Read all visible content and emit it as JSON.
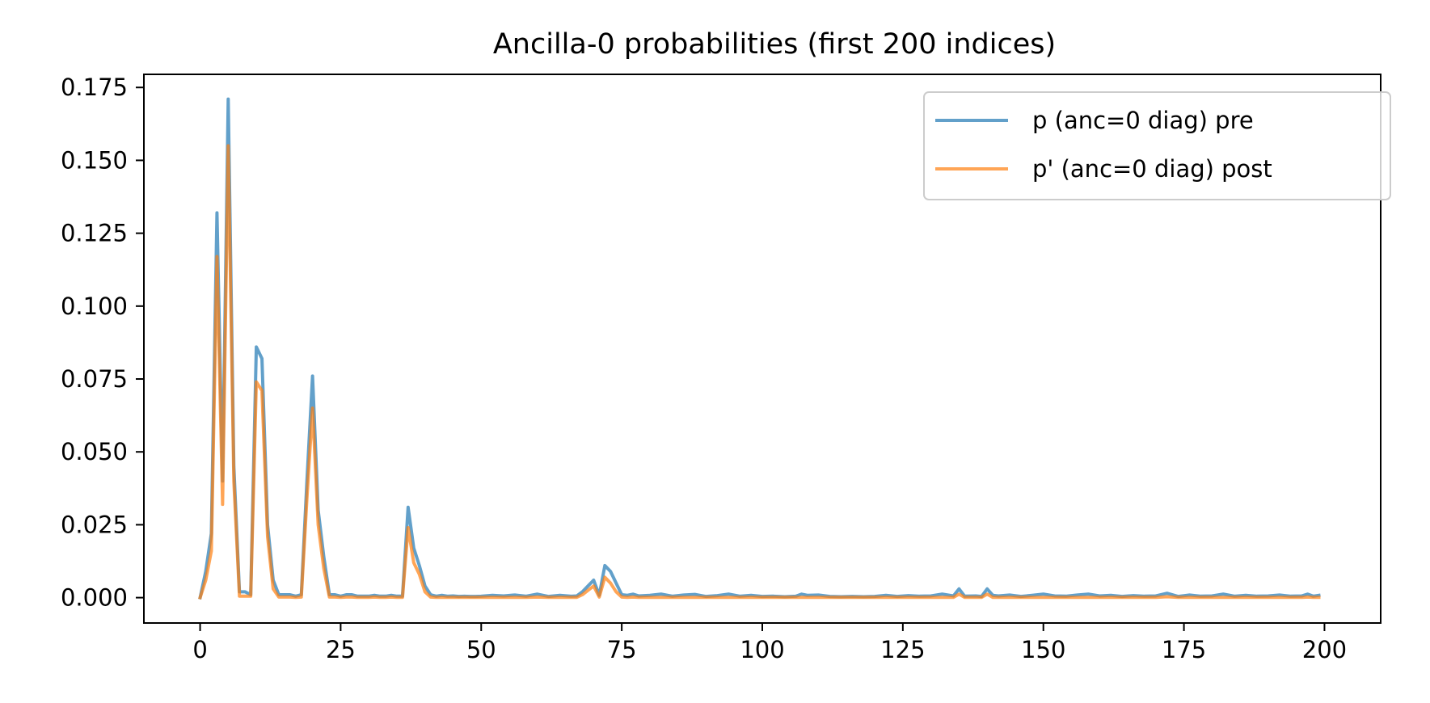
{
  "chart_data": {
    "type": "line",
    "title": "Ancilla-0 probabilities (first 200 indices)",
    "xlabel": "",
    "ylabel": "",
    "xlim": [
      -10,
      210
    ],
    "ylim": [
      -0.0087,
      0.1795
    ],
    "xticks": [
      0,
      25,
      50,
      75,
      100,
      125,
      150,
      175,
      200
    ],
    "yticks": [
      0.0,
      0.025,
      0.05,
      0.075,
      0.1,
      0.125,
      0.15,
      0.175
    ],
    "xtick_labels": [
      "0",
      "25",
      "50",
      "75",
      "100",
      "125",
      "150",
      "175",
      "200"
    ],
    "ytick_labels": [
      "0.000",
      "0.025",
      "0.050",
      "0.075",
      "0.100",
      "0.125",
      "0.150",
      "0.175"
    ],
    "grid": false,
    "legend_position": "upper right",
    "series": [
      {
        "name": "p (anc=0 diag) pre",
        "color": "#1f77b4",
        "opacity": 0.7,
        "points": [
          [
            0,
            0
          ],
          [
            1,
            0.009
          ],
          [
            2,
            0.022
          ],
          [
            3,
            0.132
          ],
          [
            4,
            0.04
          ],
          [
            5,
            0.171
          ],
          [
            6,
            0.045
          ],
          [
            7,
            0.002
          ],
          [
            8,
            0.002
          ],
          [
            9,
            0.001
          ],
          [
            10,
            0.086
          ],
          [
            11,
            0.082
          ],
          [
            12,
            0.025
          ],
          [
            13,
            0.006
          ],
          [
            14,
            0.001
          ],
          [
            15,
            0.001
          ],
          [
            16,
            0.001
          ],
          [
            17,
            0.0005
          ],
          [
            18,
            0.001
          ],
          [
            19,
            0.04
          ],
          [
            20,
            0.076
          ],
          [
            21,
            0.03
          ],
          [
            22,
            0.014
          ],
          [
            23,
            0.001
          ],
          [
            24,
            0.001
          ],
          [
            25,
            0.0005
          ],
          [
            26,
            0.001
          ],
          [
            27,
            0.001
          ],
          [
            28,
            0.0005
          ],
          [
            29,
            0.0005
          ],
          [
            30,
            0.0005
          ],
          [
            31,
            0.0008
          ],
          [
            32,
            0.0005
          ],
          [
            33,
            0.0005
          ],
          [
            34,
            0.0008
          ],
          [
            35,
            0.0005
          ],
          [
            36,
            0.0005
          ],
          [
            37,
            0.031
          ],
          [
            38,
            0.017
          ],
          [
            39,
            0.011
          ],
          [
            40,
            0.004
          ],
          [
            41,
            0.001
          ],
          [
            42,
            0.0005
          ],
          [
            43,
            0.0008
          ],
          [
            44,
            0.0005
          ],
          [
            45,
            0.0006
          ],
          [
            46,
            0.0004
          ],
          [
            47,
            0.0005
          ],
          [
            48,
            0.0004
          ],
          [
            49,
            0.0004
          ],
          [
            50,
            0.0005
          ],
          [
            52,
            0.0008
          ],
          [
            54,
            0.0006
          ],
          [
            56,
            0.0009
          ],
          [
            58,
            0.0005
          ],
          [
            60,
            0.0012
          ],
          [
            62,
            0.0004
          ],
          [
            64,
            0.0008
          ],
          [
            66,
            0.0005
          ],
          [
            67,
            0.0006
          ],
          [
            68,
            0.002
          ],
          [
            69,
            0.004
          ],
          [
            70,
            0.006
          ],
          [
            71,
            0.0008
          ],
          [
            72,
            0.011
          ],
          [
            73,
            0.009
          ],
          [
            74,
            0.005
          ],
          [
            75,
            0.001
          ],
          [
            76,
            0.0008
          ],
          [
            77,
            0.0012
          ],
          [
            78,
            0.0006
          ],
          [
            80,
            0.0008
          ],
          [
            82,
            0.0012
          ],
          [
            84,
            0.0005
          ],
          [
            86,
            0.0009
          ],
          [
            88,
            0.0011
          ],
          [
            90,
            0.0004
          ],
          [
            92,
            0.0007
          ],
          [
            94,
            0.0012
          ],
          [
            96,
            0.0005
          ],
          [
            98,
            0.0008
          ],
          [
            100,
            0.0004
          ],
          [
            102,
            0.0005
          ],
          [
            104,
            0.0003
          ],
          [
            106,
            0.0005
          ],
          [
            107,
            0.0012
          ],
          [
            108,
            0.0008
          ],
          [
            110,
            0.0009
          ],
          [
            112,
            0.0004
          ],
          [
            114,
            0.0003
          ],
          [
            116,
            0.0004
          ],
          [
            118,
            0.0003
          ],
          [
            120,
            0.0004
          ],
          [
            122,
            0.0008
          ],
          [
            124,
            0.0004
          ],
          [
            126,
            0.0007
          ],
          [
            128,
            0.0005
          ],
          [
            130,
            0.0006
          ],
          [
            132,
            0.0012
          ],
          [
            134,
            0.0006
          ],
          [
            135,
            0.003
          ],
          [
            136,
            0.0005
          ],
          [
            138,
            0.0006
          ],
          [
            139,
            0.0004
          ],
          [
            140,
            0.003
          ],
          [
            141,
            0.0008
          ],
          [
            142,
            0.0006
          ],
          [
            144,
            0.0009
          ],
          [
            146,
            0.0004
          ],
          [
            148,
            0.0008
          ],
          [
            150,
            0.0012
          ],
          [
            152,
            0.0006
          ],
          [
            154,
            0.0005
          ],
          [
            156,
            0.0009
          ],
          [
            158,
            0.0012
          ],
          [
            160,
            0.0006
          ],
          [
            162,
            0.0008
          ],
          [
            164,
            0.0004
          ],
          [
            166,
            0.0007
          ],
          [
            168,
            0.0005
          ],
          [
            170,
            0.0006
          ],
          [
            172,
            0.0015
          ],
          [
            174,
            0.0004
          ],
          [
            176,
            0.0009
          ],
          [
            178,
            0.0005
          ],
          [
            180,
            0.0006
          ],
          [
            182,
            0.0012
          ],
          [
            184,
            0.0005
          ],
          [
            186,
            0.0008
          ],
          [
            188,
            0.0005
          ],
          [
            190,
            0.0006
          ],
          [
            192,
            0.0009
          ],
          [
            194,
            0.0005
          ],
          [
            196,
            0.0006
          ],
          [
            197,
            0.0012
          ],
          [
            198,
            0.0005
          ],
          [
            199,
            0.0008
          ]
        ]
      },
      {
        "name": "p' (anc=0 diag) post",
        "color": "#ff7f0e",
        "opacity": 0.7,
        "points": [
          [
            0,
            0
          ],
          [
            1,
            0.006
          ],
          [
            2,
            0.016
          ],
          [
            3,
            0.117
          ],
          [
            4,
            0.032
          ],
          [
            5,
            0.155
          ],
          [
            6,
            0.04
          ],
          [
            7,
            0.0005
          ],
          [
            8,
            0.0005
          ],
          [
            9,
            0.0005
          ],
          [
            10,
            0.074
          ],
          [
            11,
            0.071
          ],
          [
            12,
            0.021
          ],
          [
            13,
            0.003
          ],
          [
            14,
            0.0002
          ],
          [
            15,
            0.0002
          ],
          [
            16,
            0.0002
          ],
          [
            17,
            0.0001
          ],
          [
            18,
            0.0002
          ],
          [
            19,
            0.034
          ],
          [
            20,
            0.065
          ],
          [
            21,
            0.025
          ],
          [
            22,
            0.01
          ],
          [
            23,
            0.0002
          ],
          [
            24,
            0.0002
          ],
          [
            25,
            0.0001
          ],
          [
            26,
            0.0002
          ],
          [
            27,
            0.0002
          ],
          [
            28,
            0.0001
          ],
          [
            29,
            0.0001
          ],
          [
            30,
            0.0001
          ],
          [
            31,
            0.0002
          ],
          [
            32,
            0.0001
          ],
          [
            33,
            0.0001
          ],
          [
            34,
            0.0002
          ],
          [
            35,
            0.0001
          ],
          [
            36,
            0.0001
          ],
          [
            37,
            0.024
          ],
          [
            38,
            0.012
          ],
          [
            39,
            0.008
          ],
          [
            40,
            0.002
          ],
          [
            41,
            0.0002
          ],
          [
            42,
            0.0001
          ],
          [
            43,
            0.0001
          ],
          [
            44,
            0.0001
          ],
          [
            45,
            0.0001
          ],
          [
            46,
            0.0001
          ],
          [
            47,
            0.0001
          ],
          [
            48,
            0.0001
          ],
          [
            49,
            0.0001
          ],
          [
            50,
            0.0001
          ],
          [
            52,
            0.0001
          ],
          [
            54,
            0.0001
          ],
          [
            56,
            0.0001
          ],
          [
            58,
            0.0001
          ],
          [
            60,
            0.0002
          ],
          [
            62,
            0.0001
          ],
          [
            64,
            0.0001
          ],
          [
            66,
            0.0001
          ],
          [
            67,
            0.0001
          ],
          [
            68,
            0.001
          ],
          [
            69,
            0.0025
          ],
          [
            70,
            0.004
          ],
          [
            71,
            0.0002
          ],
          [
            72,
            0.007
          ],
          [
            73,
            0.005
          ],
          [
            74,
            0.002
          ],
          [
            75,
            0.0002
          ],
          [
            76,
            0.0001
          ],
          [
            77,
            0.0002
          ],
          [
            78,
            0.0001
          ],
          [
            80,
            0.0001
          ],
          [
            82,
            0.0001
          ],
          [
            84,
            0.0001
          ],
          [
            86,
            0.0001
          ],
          [
            88,
            0.0001
          ],
          [
            90,
            0.0001
          ],
          [
            92,
            0.0001
          ],
          [
            94,
            0.0001
          ],
          [
            96,
            0.0001
          ],
          [
            98,
            0.0001
          ],
          [
            100,
            0.0001
          ],
          [
            102,
            0.0001
          ],
          [
            104,
            0.0001
          ],
          [
            106,
            0.0001
          ],
          [
            107,
            0.0001
          ],
          [
            108,
            0.0001
          ],
          [
            110,
            0.0001
          ],
          [
            112,
            0.0001
          ],
          [
            114,
            0.0001
          ],
          [
            116,
            0.0001
          ],
          [
            118,
            0.0001
          ],
          [
            120,
            0.0001
          ],
          [
            122,
            0.0001
          ],
          [
            124,
            0.0001
          ],
          [
            126,
            0.0001
          ],
          [
            128,
            0.0001
          ],
          [
            130,
            0.0001
          ],
          [
            132,
            0.0001
          ],
          [
            134,
            0.0001
          ],
          [
            135,
            0.0012
          ],
          [
            136,
            0.0001
          ],
          [
            138,
            0.0001
          ],
          [
            139,
            0.0001
          ],
          [
            140,
            0.0012
          ],
          [
            141,
            0.0001
          ],
          [
            142,
            0.0001
          ],
          [
            144,
            0.0001
          ],
          [
            146,
            0.0001
          ],
          [
            148,
            0.0001
          ],
          [
            150,
            0.0001
          ],
          [
            152,
            0.0001
          ],
          [
            154,
            0.0001
          ],
          [
            156,
            0.0001
          ],
          [
            158,
            0.0001
          ],
          [
            160,
            0.0001
          ],
          [
            162,
            0.0001
          ],
          [
            164,
            0.0001
          ],
          [
            166,
            0.0001
          ],
          [
            168,
            0.0001
          ],
          [
            170,
            0.0001
          ],
          [
            172,
            0.0003
          ],
          [
            174,
            0.0001
          ],
          [
            176,
            0.0001
          ],
          [
            178,
            0.0001
          ],
          [
            180,
            0.0001
          ],
          [
            182,
            0.0001
          ],
          [
            184,
            0.0001
          ],
          [
            186,
            0.0001
          ],
          [
            188,
            0.0001
          ],
          [
            190,
            0.0001
          ],
          [
            192,
            0.0001
          ],
          [
            194,
            0.0001
          ],
          [
            196,
            0.0001
          ],
          [
            197,
            0.0002
          ],
          [
            198,
            0.0001
          ],
          [
            199,
            0.0001
          ]
        ]
      }
    ]
  }
}
